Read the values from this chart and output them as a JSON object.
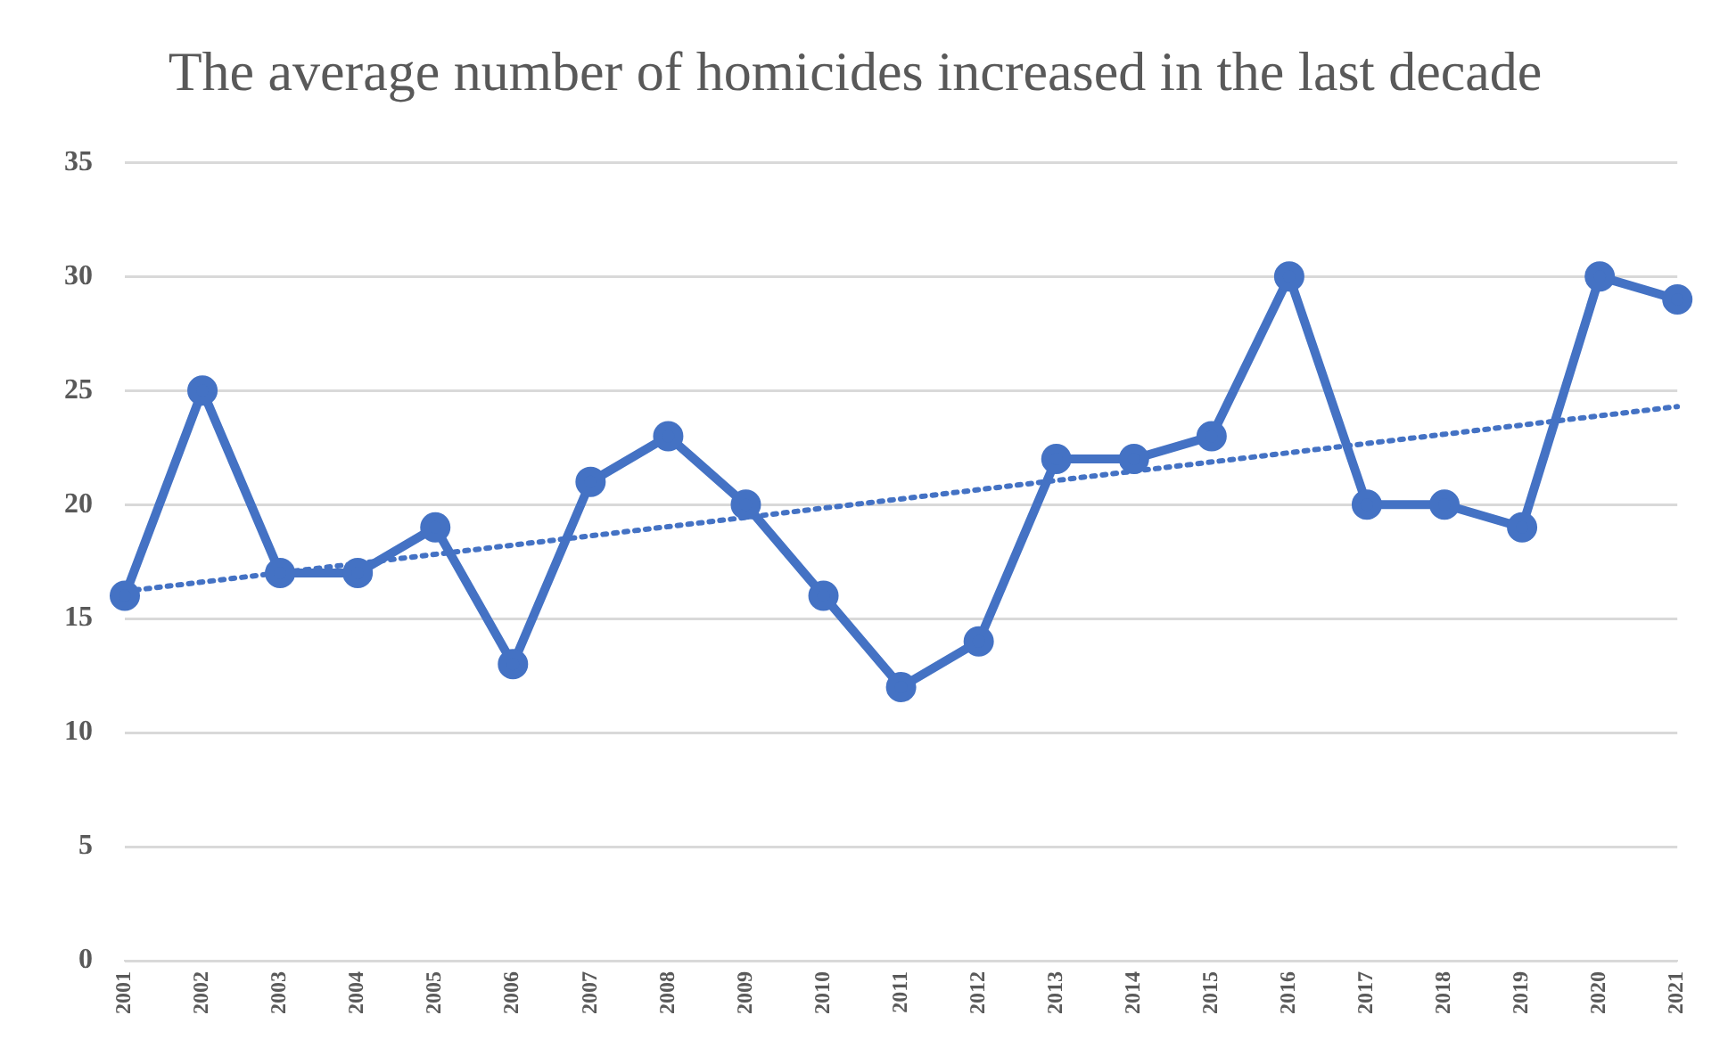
{
  "chart_data": {
    "type": "line",
    "title": "The average number of homicides increased in the last decade",
    "categories": [
      "2001",
      "2002",
      "2003",
      "2004",
      "2005",
      "2006",
      "2007",
      "2008",
      "2009",
      "2010",
      "2011",
      "2012",
      "2013",
      "2014",
      "2015",
      "2016",
      "2017",
      "2018",
      "2019",
      "2020",
      "2021"
    ],
    "series": [
      {
        "color": "#4472c4",
        "values": [
          16,
          25,
          17,
          17,
          19,
          13,
          21,
          23,
          20,
          16,
          12,
          14,
          22,
          22,
          23,
          30,
          20,
          20,
          19,
          30,
          29
        ],
        "marker": "circle",
        "line_style": "solid"
      },
      {
        "type": "line",
        "color": "#4472c4",
        "values": [
          16.2,
          null,
          null,
          null,
          null,
          null,
          null,
          null,
          null,
          null,
          null,
          null,
          null,
          null,
          null,
          null,
          null,
          null,
          null,
          null,
          24.3
        ],
        "marker": "none",
        "line_style": "dotted"
      }
    ],
    "ylim": [
      0,
      35
    ],
    "yticks": [
      0,
      5,
      10,
      15,
      20,
      25,
      30,
      35
    ],
    "grid": "y",
    "legend": false
  }
}
